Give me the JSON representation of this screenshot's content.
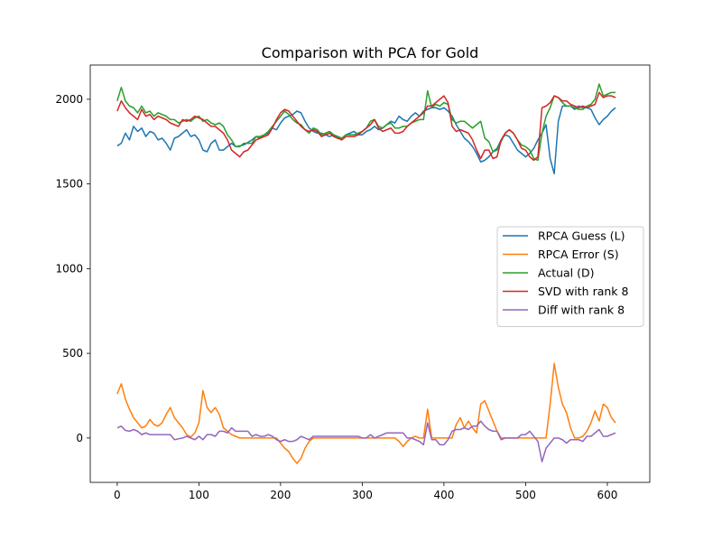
{
  "chart_data": {
    "type": "line",
    "title": "Comparison with PCA for Gold",
    "xlabel": "",
    "ylabel": "",
    "xlim": [
      -33,
      652
    ],
    "ylim": [
      -262,
      2202
    ],
    "xticks": [
      0,
      100,
      200,
      300,
      400,
      500,
      600
    ],
    "yticks": [
      0,
      500,
      1000,
      1500,
      2000
    ],
    "grid": false,
    "legend_position": "center-right",
    "series": [
      {
        "name": "RPCA Guess (L)",
        "color": "#1f77b4",
        "x": [
          0,
          5,
          10,
          15,
          20,
          25,
          30,
          35,
          40,
          45,
          50,
          55,
          60,
          65,
          70,
          75,
          80,
          85,
          90,
          95,
          100,
          105,
          110,
          115,
          120,
          125,
          130,
          135,
          140,
          145,
          150,
          155,
          160,
          165,
          170,
          175,
          180,
          185,
          190,
          195,
          200,
          205,
          210,
          215,
          220,
          225,
          230,
          235,
          240,
          245,
          250,
          255,
          260,
          265,
          270,
          275,
          280,
          285,
          290,
          295,
          300,
          305,
          310,
          315,
          320,
          325,
          330,
          335,
          340,
          345,
          350,
          355,
          360,
          365,
          370,
          375,
          380,
          385,
          390,
          395,
          400,
          405,
          410,
          415,
          420,
          425,
          430,
          435,
          440,
          445,
          450,
          455,
          460,
          465,
          470,
          475,
          480,
          485,
          490,
          495,
          500,
          505,
          510,
          515,
          520,
          525,
          530,
          535,
          540,
          545,
          550,
          555,
          560,
          565,
          570,
          575,
          580,
          585,
          590,
          595,
          600,
          605,
          610
        ],
        "values": [
          1725,
          1740,
          1800,
          1760,
          1840,
          1810,
          1830,
          1780,
          1810,
          1800,
          1760,
          1770,
          1740,
          1700,
          1770,
          1780,
          1800,
          1820,
          1780,
          1790,
          1760,
          1700,
          1690,
          1740,
          1760,
          1700,
          1700,
          1720,
          1740,
          1720,
          1725,
          1730,
          1745,
          1760,
          1780,
          1770,
          1790,
          1800,
          1830,
          1820,
          1860,
          1890,
          1900,
          1910,
          1930,
          1920,
          1870,
          1830,
          1810,
          1800,
          1800,
          1790,
          1780,
          1790,
          1770,
          1770,
          1790,
          1800,
          1810,
          1790,
          1790,
          1810,
          1820,
          1840,
          1820,
          1830,
          1850,
          1870,
          1860,
          1900,
          1880,
          1870,
          1900,
          1920,
          1900,
          1930,
          1940,
          1950,
          1950,
          1940,
          1950,
          1930,
          1900,
          1850,
          1810,
          1770,
          1750,
          1720,
          1680,
          1630,
          1640,
          1660,
          1690,
          1710,
          1760,
          1790,
          1780,
          1740,
          1700,
          1680,
          1660,
          1680,
          1710,
          1760,
          1800,
          1850,
          1650,
          1560,
          1870,
          1960,
          1960,
          1960,
          1940,
          1960,
          1950,
          1950,
          1940,
          1890,
          1850,
          1880,
          1900,
          1930,
          1950
        ]
      },
      {
        "name": "RPCA Error (S)",
        "color": "#ff7f0e",
        "x": [
          0,
          5,
          10,
          15,
          20,
          25,
          30,
          35,
          40,
          45,
          50,
          55,
          60,
          65,
          70,
          75,
          80,
          85,
          90,
          95,
          100,
          105,
          110,
          115,
          120,
          125,
          130,
          135,
          140,
          145,
          150,
          155,
          160,
          165,
          170,
          175,
          180,
          185,
          190,
          195,
          200,
          205,
          210,
          215,
          220,
          225,
          230,
          235,
          240,
          245,
          250,
          255,
          260,
          265,
          270,
          275,
          280,
          285,
          290,
          295,
          300,
          305,
          310,
          315,
          320,
          325,
          330,
          335,
          340,
          345,
          350,
          355,
          360,
          365,
          370,
          375,
          380,
          385,
          390,
          395,
          400,
          405,
          410,
          415,
          420,
          425,
          430,
          435,
          440,
          445,
          450,
          455,
          460,
          465,
          470,
          475,
          480,
          485,
          490,
          495,
          500,
          505,
          510,
          515,
          520,
          525,
          530,
          535,
          540,
          545,
          550,
          555,
          560,
          565,
          570,
          575,
          580,
          585,
          590,
          595,
          600,
          605,
          610
        ],
        "values": [
          260,
          320,
          230,
          170,
          120,
          90,
          60,
          70,
          110,
          80,
          70,
          90,
          140,
          180,
          120,
          90,
          60,
          20,
          5,
          30,
          90,
          280,
          180,
          150,
          180,
          140,
          60,
          40,
          20,
          10,
          0,
          0,
          0,
          0,
          0,
          0,
          0,
          0,
          0,
          0,
          -30,
          -60,
          -80,
          -120,
          -150,
          -120,
          -60,
          -20,
          0,
          0,
          0,
          0,
          0,
          0,
          0,
          0,
          0,
          0,
          0,
          0,
          0,
          0,
          0,
          0,
          0,
          0,
          0,
          0,
          0,
          -20,
          -50,
          -20,
          0,
          10,
          0,
          0,
          170,
          0,
          0,
          0,
          0,
          0,
          0,
          80,
          120,
          60,
          100,
          60,
          30,
          200,
          220,
          160,
          100,
          40,
          0,
          0,
          0,
          0,
          0,
          0,
          0,
          0,
          0,
          0,
          0,
          0,
          200,
          440,
          300,
          200,
          150,
          60,
          0,
          0,
          10,
          40,
          90,
          160,
          100,
          200,
          180,
          120,
          90
        ]
      },
      {
        "name": "Actual (D)",
        "color": "#2ca02c",
        "x": [
          0,
          5,
          10,
          15,
          20,
          25,
          30,
          35,
          40,
          45,
          50,
          55,
          60,
          65,
          70,
          75,
          80,
          85,
          90,
          95,
          100,
          105,
          110,
          115,
          120,
          125,
          130,
          135,
          140,
          145,
          150,
          155,
          160,
          165,
          170,
          175,
          180,
          185,
          190,
          195,
          200,
          205,
          210,
          215,
          220,
          225,
          230,
          235,
          240,
          245,
          250,
          255,
          260,
          265,
          270,
          275,
          280,
          285,
          290,
          295,
          300,
          305,
          310,
          315,
          320,
          325,
          330,
          335,
          340,
          345,
          350,
          355,
          360,
          365,
          370,
          375,
          380,
          385,
          390,
          395,
          400,
          405,
          410,
          415,
          420,
          425,
          430,
          435,
          440,
          445,
          450,
          455,
          460,
          465,
          470,
          475,
          480,
          485,
          490,
          495,
          500,
          505,
          510,
          515,
          520,
          525,
          530,
          535,
          540,
          545,
          550,
          555,
          560,
          565,
          570,
          575,
          580,
          585,
          590,
          595,
          600,
          605,
          610
        ],
        "values": [
          1990,
          2070,
          1990,
          1960,
          1950,
          1920,
          1960,
          1920,
          1930,
          1900,
          1920,
          1910,
          1900,
          1880,
          1880,
          1860,
          1870,
          1880,
          1870,
          1890,
          1900,
          1870,
          1880,
          1860,
          1850,
          1860,
          1840,
          1790,
          1760,
          1720,
          1720,
          1740,
          1740,
          1740,
          1780,
          1780,
          1790,
          1810,
          1840,
          1870,
          1900,
          1930,
          1910,
          1880,
          1860,
          1850,
          1820,
          1800,
          1830,
          1820,
          1790,
          1800,
          1810,
          1790,
          1780,
          1770,
          1790,
          1790,
          1790,
          1800,
          1810,
          1830,
          1870,
          1880,
          1840,
          1830,
          1850,
          1860,
          1830,
          1830,
          1840,
          1840,
          1860,
          1870,
          1880,
          1880,
          2050,
          1950,
          1970,
          1960,
          1980,
          1970,
          1880,
          1860,
          1870,
          1870,
          1850,
          1830,
          1850,
          1870,
          1770,
          1750,
          1690,
          1700,
          1750,
          1800,
          1820,
          1800,
          1760,
          1730,
          1720,
          1700,
          1650,
          1640,
          1800,
          1900,
          1950,
          2020,
          2010,
          1980,
          1960,
          1960,
          1950,
          1940,
          1940,
          1960,
          1970,
          2000,
          2090,
          2020,
          2030,
          2040,
          2040
        ]
      },
      {
        "name": "SVD with rank 8",
        "color": "#d62728",
        "x": [
          0,
          5,
          10,
          15,
          20,
          25,
          30,
          35,
          40,
          45,
          50,
          55,
          60,
          65,
          70,
          75,
          80,
          85,
          90,
          95,
          100,
          105,
          110,
          115,
          120,
          125,
          130,
          135,
          140,
          145,
          150,
          155,
          160,
          165,
          170,
          175,
          180,
          185,
          190,
          195,
          200,
          205,
          210,
          215,
          220,
          225,
          230,
          235,
          240,
          245,
          250,
          255,
          260,
          265,
          270,
          275,
          280,
          285,
          290,
          295,
          300,
          305,
          310,
          315,
          320,
          325,
          330,
          335,
          340,
          345,
          350,
          355,
          360,
          365,
          370,
          375,
          380,
          385,
          390,
          395,
          400,
          405,
          410,
          415,
          420,
          425,
          430,
          435,
          440,
          445,
          450,
          455,
          460,
          465,
          470,
          475,
          480,
          485,
          490,
          495,
          500,
          505,
          510,
          515,
          520,
          525,
          530,
          535,
          540,
          545,
          550,
          555,
          560,
          565,
          570,
          575,
          580,
          585,
          590,
          595,
          600,
          605,
          610
        ],
        "values": [
          1930,
          1990,
          1950,
          1920,
          1900,
          1880,
          1940,
          1900,
          1910,
          1880,
          1900,
          1890,
          1880,
          1860,
          1850,
          1840,
          1880,
          1870,
          1880,
          1900,
          1890,
          1880,
          1860,
          1840,
          1840,
          1820,
          1800,
          1760,
          1700,
          1680,
          1660,
          1690,
          1700,
          1730,
          1760,
          1770,
          1780,
          1790,
          1830,
          1880,
          1920,
          1940,
          1930,
          1900,
          1870,
          1840,
          1820,
          1810,
          1820,
          1810,
          1780,
          1790,
          1800,
          1780,
          1770,
          1760,
          1780,
          1780,
          1780,
          1790,
          1810,
          1830,
          1850,
          1880,
          1830,
          1810,
          1820,
          1830,
          1800,
          1800,
          1810,
          1840,
          1860,
          1880,
          1900,
          1920,
          1960,
          1960,
          1980,
          2000,
          2020,
          1980,
          1840,
          1810,
          1820,
          1810,
          1800,
          1760,
          1700,
          1650,
          1700,
          1700,
          1650,
          1660,
          1760,
          1800,
          1820,
          1800,
          1760,
          1710,
          1700,
          1660,
          1640,
          1660,
          1950,
          1960,
          1980,
          2020,
          2010,
          1990,
          1990,
          1970,
          1960,
          1950,
          1960,
          1950,
          1960,
          1970,
          2040,
          2010,
          2020,
          2020,
          2010
        ]
      },
      {
        "name": "Diff with rank 8",
        "color": "#9467bd",
        "x": [
          0,
          5,
          10,
          15,
          20,
          25,
          30,
          35,
          40,
          45,
          50,
          55,
          60,
          65,
          70,
          75,
          80,
          85,
          90,
          95,
          100,
          105,
          110,
          115,
          120,
          125,
          130,
          135,
          140,
          145,
          150,
          155,
          160,
          165,
          170,
          175,
          180,
          185,
          190,
          195,
          200,
          205,
          210,
          215,
          220,
          225,
          230,
          235,
          240,
          245,
          250,
          255,
          260,
          265,
          270,
          275,
          280,
          285,
          290,
          295,
          300,
          305,
          310,
          315,
          320,
          325,
          330,
          335,
          340,
          345,
          350,
          355,
          360,
          365,
          370,
          375,
          380,
          385,
          390,
          395,
          400,
          405,
          410,
          415,
          420,
          425,
          430,
          435,
          440,
          445,
          450,
          455,
          460,
          465,
          470,
          475,
          480,
          485,
          490,
          495,
          500,
          505,
          510,
          515,
          520,
          525,
          530,
          535,
          540,
          545,
          550,
          555,
          560,
          565,
          570,
          575,
          580,
          585,
          590,
          595,
          600,
          605,
          610
        ],
        "values": [
          60,
          70,
          45,
          40,
          50,
          40,
          20,
          30,
          20,
          20,
          20,
          20,
          20,
          20,
          -10,
          -5,
          0,
          10,
          0,
          -10,
          10,
          -10,
          20,
          20,
          10,
          40,
          40,
          30,
          60,
          40,
          40,
          40,
          40,
          10,
          20,
          10,
          10,
          20,
          10,
          -10,
          -20,
          -10,
          -20,
          -20,
          -10,
          10,
          0,
          -10,
          10,
          10,
          10,
          10,
          10,
          10,
          10,
          10,
          10,
          10,
          10,
          10,
          0,
          0,
          20,
          0,
          10,
          20,
          30,
          30,
          30,
          30,
          30,
          0,
          0,
          -10,
          -20,
          -40,
          90,
          -10,
          -10,
          -40,
          -40,
          -10,
          40,
          50,
          50,
          60,
          50,
          70,
          70,
          100,
          70,
          50,
          40,
          40,
          -10,
          0,
          0,
          0,
          0,
          20,
          20,
          40,
          10,
          -20,
          -140,
          -60,
          -30,
          0,
          0,
          -10,
          -30,
          -10,
          -10,
          -10,
          -20,
          10,
          10,
          30,
          50,
          10,
          10,
          20,
          30
        ]
      }
    ]
  }
}
